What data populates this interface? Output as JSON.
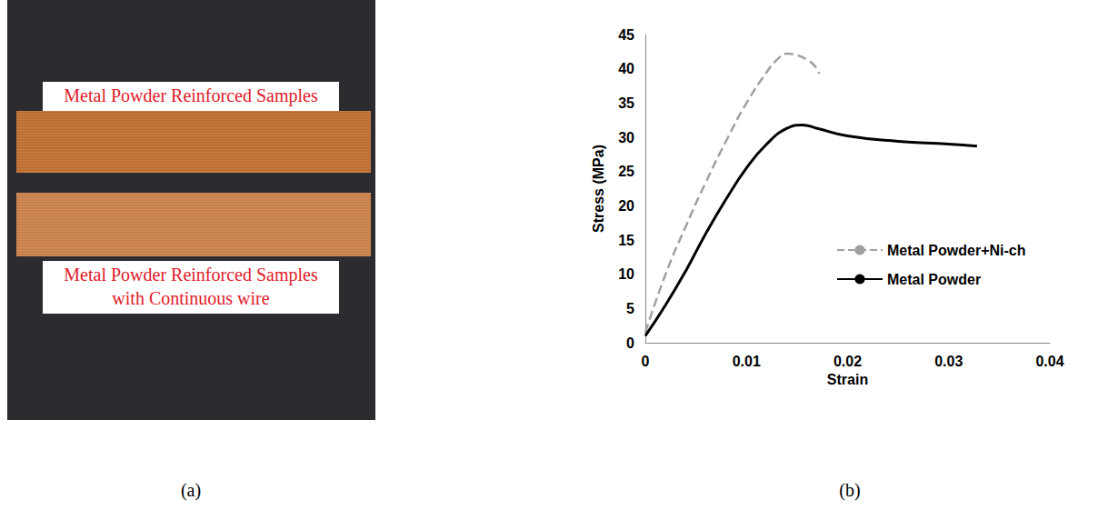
{
  "panels": [
    "(a)",
    "(b)"
  ],
  "photo": {
    "labels": [
      [
        "Metal Powder Reinforced Samples"
      ],
      [
        "Metal Powder Reinforced Samples",
        "with Continuous wire"
      ]
    ]
  },
  "chart_data": {
    "type": "line",
    "x_label": "Strain",
    "y_label": "Stress (MPa)",
    "xlim": [
      0,
      0.04
    ],
    "xticks": [
      0,
      0.01,
      0.02,
      0.03,
      0.04
    ],
    "ylim": [
      0,
      45
    ],
    "yticks": [
      0,
      5,
      10,
      15,
      20,
      25,
      30,
      35,
      40,
      45
    ],
    "grid": false,
    "legend": "right",
    "series": [
      {
        "name": "Metal Powder+Ni-ch",
        "color": "#a0a0a0",
        "line_style": "dashed",
        "x": [
          0,
          0.002,
          0.004,
          0.006,
          0.008,
          0.01,
          0.012,
          0.013,
          0.014,
          0.015,
          0.016,
          0.0167,
          0.0172
        ],
        "values": [
          1.5,
          10,
          17,
          23.5,
          29.5,
          35,
          39.5,
          41.3,
          42.2,
          42,
          41.3,
          40.5,
          39.3
        ]
      },
      {
        "name": "Metal Powder",
        "color": "#000000",
        "line_style": "solid",
        "x": [
          0,
          0.002,
          0.004,
          0.006,
          0.008,
          0.01,
          0.012,
          0.014,
          0.0155,
          0.017,
          0.02,
          0.025,
          0.03,
          0.0328
        ],
        "values": [
          1,
          5.5,
          10.5,
          16,
          21,
          25.5,
          29,
          31.3,
          31.8,
          31.3,
          30.2,
          29.4,
          29,
          28.7
        ]
      }
    ]
  }
}
